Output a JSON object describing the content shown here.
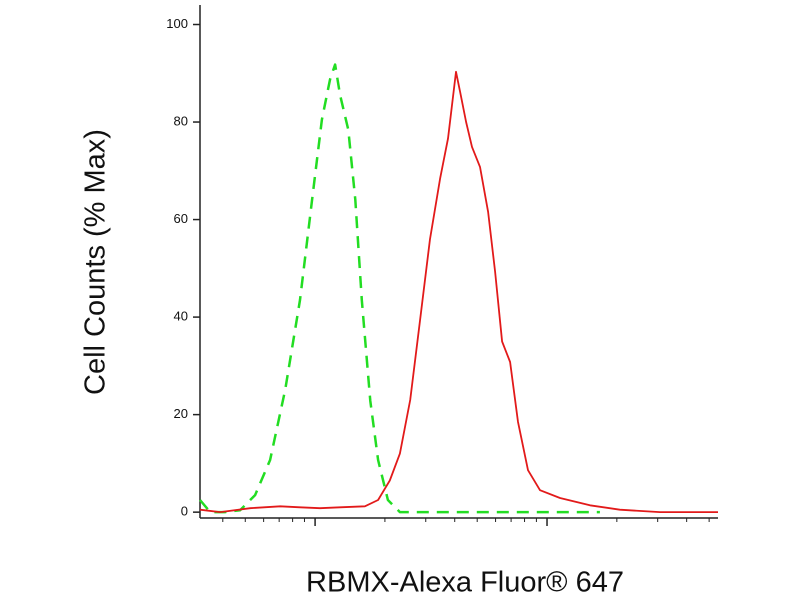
{
  "chart_data": {
    "type": "line",
    "y_label": "Cell Counts (% Max)",
    "x_label": "RBMX-Alexa Fluor® 647",
    "xscale": "log",
    "xlim": [
      3.19,
      546
    ],
    "xticks": [
      10,
      100
    ],
    "ylim": [
      -1.2,
      104
    ],
    "yticks": [
      0,
      20,
      40,
      60,
      80,
      100
    ],
    "series": [
      {
        "color": "#22dd22",
        "dashed": true,
        "x": [
          3.19,
          3.53,
          4.09,
          4.75,
          5.51,
          6.4,
          7.43,
          8.61,
          9.71,
          10.7,
          11.6,
          12.2,
          12.8,
          13.9,
          14.9,
          15.9,
          17.3,
          18.7,
          20.6,
          23.2,
          28.4,
          62.7,
          169
        ],
        "values": [
          2.5,
          0,
          0,
          0.4,
          3.5,
          10.7,
          25.1,
          43.5,
          64.1,
          80.5,
          88.7,
          91.8,
          85.6,
          78.4,
          64.1,
          43.5,
          22.8,
          10.7,
          2.5,
          0,
          0,
          0,
          0
        ]
      },
      {
        "color": "#e21a1a",
        "dashed": false,
        "x": [
          3.19,
          3.9,
          5.25,
          7.07,
          8.61,
          10.5,
          12.8,
          16.4,
          18.7,
          21.0,
          23.2,
          25.7,
          28.4,
          31.3,
          34.6,
          37.4,
          39.0,
          40.5,
          42.2,
          44.8,
          47.5,
          51.4,
          55.7,
          59.7,
          64.0,
          69.3,
          75.0,
          82.8,
          93.3,
          113.8,
          153,
          206,
          307,
          546
        ],
        "values": [
          0.5,
          0,
          0.8,
          1.2,
          1,
          0.8,
          1,
          1.2,
          2.5,
          6.5,
          12,
          23,
          39.6,
          56,
          68.4,
          76.6,
          83.8,
          90.3,
          86.2,
          80,
          74.9,
          70.8,
          61.6,
          49.3,
          35,
          30.8,
          18.5,
          8.6,
          4.5,
          2.9,
          1.4,
          0.5,
          0,
          0
        ]
      }
    ]
  }
}
